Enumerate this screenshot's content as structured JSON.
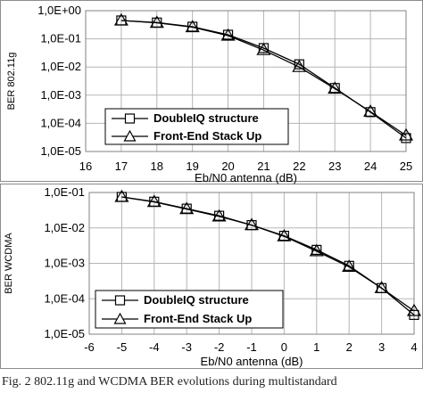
{
  "caption": "Fig. 2 802.11g and WCDMA BER evolutions during multistandard",
  "chart_data": [
    {
      "type": "line",
      "xlabel": "Eb/N0 antenna (dB)",
      "ylabel": "BER 802.11g",
      "yscale": "log",
      "xlim": [
        16,
        25
      ],
      "ylim": [
        1e-05,
        1
      ],
      "x_ticks": [
        "16",
        "17",
        "18",
        "19",
        "20",
        "21",
        "22",
        "23",
        "24",
        "25"
      ],
      "y_ticks": [
        "1,0E+00",
        "1,0E-01",
        "1,0E-02",
        "1,0E-03",
        "1,0E-04",
        "1,0E-05"
      ],
      "grid": true,
      "legend_position": "bottom-left",
      "x": [
        17,
        18,
        19,
        20,
        21,
        22,
        23,
        24,
        25
      ],
      "series": [
        {
          "name": "DoubleIQ structure",
          "marker": "square",
          "values": [
            0.45,
            0.38,
            0.27,
            0.14,
            0.047,
            0.0125,
            0.0018,
            0.00025,
            3e-05
          ]
        },
        {
          "name": "Front-End Stack Up",
          "marker": "triangle",
          "values": [
            0.45,
            0.37,
            0.26,
            0.13,
            0.04,
            0.01,
            0.0017,
            0.00026,
            3.7e-05
          ]
        }
      ]
    },
    {
      "type": "line",
      "xlabel": "Eb/N0 antenna (dB)",
      "ylabel": "BER WCDMA",
      "yscale": "log",
      "xlim": [
        -6,
        4
      ],
      "ylim": [
        1e-05,
        0.1
      ],
      "x_ticks": [
        "-6",
        "-5",
        "-4",
        "-3",
        "-2",
        "-1",
        "0",
        "1",
        "2",
        "3",
        "4"
      ],
      "y_ticks": [
        "1,0E-01",
        "1,0E-02",
        "1,0E-03",
        "1,0E-04",
        "1,0E-05"
      ],
      "grid": true,
      "legend_position": "bottom-left",
      "x": [
        -5,
        -4,
        -3,
        -2,
        -1,
        0,
        1,
        2,
        3,
        4
      ],
      "series": [
        {
          "name": "DoubleIQ structure",
          "marker": "square",
          "values": [
            0.075,
            0.055,
            0.035,
            0.022,
            0.012,
            0.006,
            0.0024,
            0.00085,
            0.0002,
            3.5e-05
          ]
        },
        {
          "name": "Front-End Stack Up",
          "marker": "triangle",
          "values": [
            0.075,
            0.054,
            0.034,
            0.021,
            0.012,
            0.0058,
            0.0022,
            0.0008,
            0.0002,
            4.5e-05
          ]
        }
      ]
    }
  ]
}
